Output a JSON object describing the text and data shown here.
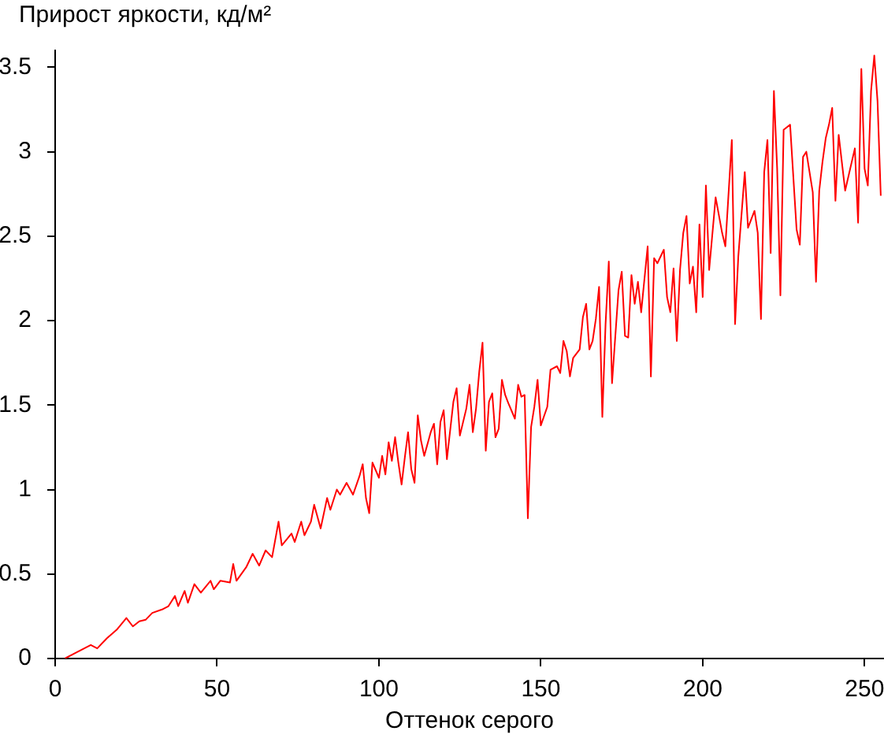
{
  "chart_data": {
    "type": "line",
    "ylabel": "Прирост яркости, кд/м²",
    "xlabel": "Оттенок серого",
    "color": "#ff0000",
    "marker": "none",
    "xlim": [
      0,
      256
    ],
    "xticks": [
      0,
      50,
      100,
      150,
      200,
      250
    ],
    "ylim": [
      0,
      3.6
    ],
    "yticks": [
      0,
      0.5,
      1,
      1.5,
      2,
      2.5,
      3,
      3.5
    ],
    "x": [
      3,
      7,
      11,
      13,
      16,
      19,
      22,
      24,
      26,
      28,
      30,
      33,
      35,
      37,
      38,
      40,
      41,
      43,
      45,
      48,
      49,
      51,
      54,
      55,
      56,
      59,
      61,
      63,
      65,
      67,
      69,
      70,
      73,
      74,
      76,
      77,
      79,
      80,
      82,
      84,
      85,
      87,
      88,
      90,
      92,
      94,
      95,
      96,
      97,
      98,
      100,
      101,
      102,
      103,
      104,
      105,
      106,
      107,
      108,
      109,
      110,
      111,
      112,
      113,
      114,
      116,
      117,
      118,
      119,
      120,
      121,
      123,
      124,
      125,
      127,
      128,
      129,
      130,
      131,
      132,
      133,
      134,
      135,
      136,
      137,
      138,
      139,
      140,
      142,
      143,
      144,
      145,
      146,
      147,
      148,
      149,
      150,
      152,
      153,
      155,
      156,
      157,
      158,
      159,
      160,
      162,
      163,
      164,
      165,
      166,
      167,
      168,
      169,
      170,
      171,
      172,
      174,
      175,
      176,
      177,
      178,
      179,
      180,
      181,
      183,
      184,
      185,
      186,
      188,
      189,
      190,
      191,
      192,
      193,
      194,
      195,
      196,
      197,
      198,
      199,
      200,
      201,
      202,
      204,
      206,
      207,
      209,
      210,
      211,
      213,
      214,
      216,
      217,
      218,
      219,
      220,
      221,
      222,
      223,
      224,
      225,
      227,
      229,
      230,
      231,
      232,
      234,
      235,
      236,
      237,
      238,
      239,
      240,
      241,
      242,
      244,
      247,
      248,
      249,
      250,
      251,
      252,
      253,
      254,
      255
    ],
    "values": [
      0,
      0.04,
      0.08,
      0.06,
      0.12,
      0.17,
      0.24,
      0.19,
      0.22,
      0.23,
      0.27,
      0.29,
      0.31,
      0.37,
      0.31,
      0.4,
      0.33,
      0.44,
      0.39,
      0.46,
      0.41,
      0.46,
      0.45,
      0.56,
      0.46,
      0.54,
      0.62,
      0.55,
      0.64,
      0.6,
      0.81,
      0.67,
      0.74,
      0.69,
      0.81,
      0.73,
      0.81,
      0.91,
      0.77,
      0.95,
      0.88,
      1,
      0.97,
      1.04,
      0.97,
      1.08,
      1.15,
      0.95,
      0.86,
      1.16,
      1.07,
      1.2,
      1.09,
      1.28,
      1.17,
      1.31,
      1.16,
      1.03,
      1.19,
      1.34,
      1.12,
      1.04,
      1.44,
      1.29,
      1.2,
      1.34,
      1.39,
      1.15,
      1.4,
      1.47,
      1.18,
      1.52,
      1.6,
      1.32,
      1.48,
      1.62,
      1.34,
      1.48,
      1.7,
      1.87,
      1.23,
      1.52,
      1.57,
      1.31,
      1.36,
      1.65,
      1.56,
      1.51,
      1.42,
      1.62,
      1.55,
      1.56,
      0.83,
      1.37,
      1.49,
      1.65,
      1.38,
      1.49,
      1.71,
      1.73,
      1.69,
      1.88,
      1.82,
      1.67,
      1.78,
      1.83,
      2.02,
      2.1,
      1.83,
      1.88,
      2.01,
      2.2,
      1.43,
      1.98,
      2.35,
      1.63,
      2.18,
      2.29,
      1.91,
      1.9,
      2.27,
      2.1,
      2.23,
      2.05,
      2.44,
      1.67,
      2.37,
      2.34,
      2.42,
      2.14,
      2.05,
      2.31,
      1.88,
      2.3,
      2.52,
      2.62,
      2.22,
      2.32,
      2.05,
      2.57,
      2.14,
      2.8,
      2.3,
      2.73,
      2.52,
      2.44,
      3.07,
      1.98,
      2.38,
      2.88,
      2.55,
      2.65,
      2.52,
      2.01,
      2.88,
      3.07,
      2.4,
      3.36,
      2.9,
      2.15,
      3.13,
      3.16,
      2.54,
      2.45,
      2.97,
      3,
      2.76,
      2.23,
      2.77,
      2.94,
      3.08,
      3.16,
      3.26,
      2.71,
      3.1,
      2.77,
      3.02,
      2.58,
      3.49,
      2.9,
      2.8,
      3.36,
      3.57,
      3.3,
      2.74
    ]
  }
}
